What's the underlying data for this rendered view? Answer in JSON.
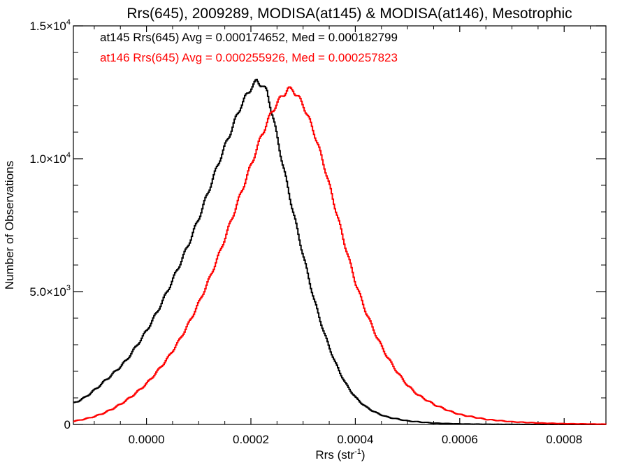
{
  "chart_data": {
    "type": "line",
    "title": "Rrs(645), 2009289, MODISA(at145) & MODISA(at146), Mesotrophic",
    "xlabel": "Rrs (str",
    "xlabel_sup": "-1",
    "xlabel_suffix": ")",
    "ylabel": "Number of Observations",
    "xlim": [
      -0.00014,
      0.00088
    ],
    "ylim": [
      0,
      15000
    ],
    "x_ticks": [
      0.0,
      0.0002,
      0.0004,
      0.0006,
      0.0008
    ],
    "x_tick_labels": [
      "0.0000",
      "0.0002",
      "0.0004",
      "0.0006",
      "0.0008"
    ],
    "y_ticks": [
      0,
      5000,
      10000,
      15000
    ],
    "y_tick_labels": [
      {
        "base": "0",
        "exp": ""
      },
      {
        "base": "5.0×10",
        "exp": "3"
      },
      {
        "base": "1.0×10",
        "exp": "4"
      },
      {
        "base": "1.5×10",
        "exp": "4"
      }
    ],
    "grid": false,
    "legend_position": "top-left",
    "series": [
      {
        "label": "at145 Rrs(645) Avg = 0.000174652, Med = 0.000182799",
        "color": "#000000",
        "x": [
          -0.00014,
          -0.00012,
          -0.0001,
          -8e-05,
          -6e-05,
          -4e-05,
          -2e-05,
          0.0,
          2e-05,
          4e-05,
          6e-05,
          8e-05,
          0.0001,
          0.00012,
          0.00014,
          0.00016,
          0.00018,
          0.0002,
          0.00021,
          0.00022,
          0.00023,
          0.00024,
          0.00026,
          0.00028,
          0.0003,
          0.00032,
          0.00034,
          0.00036,
          0.00038,
          0.0004,
          0.00042,
          0.00044,
          0.00046,
          0.0005,
          0.00055,
          0.0006,
          0.00065,
          0.0007,
          0.00075,
          0.0008,
          0.00088
        ],
        "y": [
          800,
          1000,
          1300,
          1650,
          2000,
          2400,
          2950,
          3550,
          4250,
          5050,
          5900,
          6800,
          7800,
          8900,
          10000,
          11000,
          12000,
          12700,
          12900,
          12800,
          12500,
          11700,
          9800,
          8000,
          6300,
          4700,
          3400,
          2350,
          1550,
          1000,
          650,
          430,
          280,
          130,
          50,
          20,
          8,
          4,
          2,
          1,
          0
        ]
      },
      {
        "label": "at146 Rrs(645) Avg = 0.000255926, Med = 0.000257823",
        "color": "#ff0000",
        "x": [
          -0.00014,
          -0.00012,
          -0.0001,
          -8e-05,
          -6e-05,
          -4e-05,
          -2e-05,
          0.0,
          2e-05,
          4e-05,
          6e-05,
          8e-05,
          0.0001,
          0.00012,
          0.00014,
          0.00016,
          0.00018,
          0.0002,
          0.00022,
          0.00024,
          0.00026,
          0.00027,
          0.00028,
          0.00029,
          0.0003,
          0.00032,
          0.00034,
          0.00036,
          0.00038,
          0.0004,
          0.00042,
          0.00044,
          0.00046,
          0.00048,
          0.0005,
          0.00052,
          0.00055,
          0.00058,
          0.0006,
          0.00065,
          0.0007,
          0.00075,
          0.0008,
          0.00088
        ],
        "y": [
          120,
          200,
          300,
          450,
          650,
          900,
          1200,
          1550,
          2000,
          2500,
          3100,
          3800,
          4600,
          5500,
          6500,
          7600,
          8700,
          9800,
          10900,
          11800,
          12400,
          12600,
          12600,
          12300,
          12000,
          11000,
          9700,
          8200,
          6700,
          5300,
          4200,
          3300,
          2550,
          1950,
          1450,
          1100,
          750,
          500,
          370,
          190,
          100,
          55,
          30,
          10
        ]
      }
    ]
  }
}
